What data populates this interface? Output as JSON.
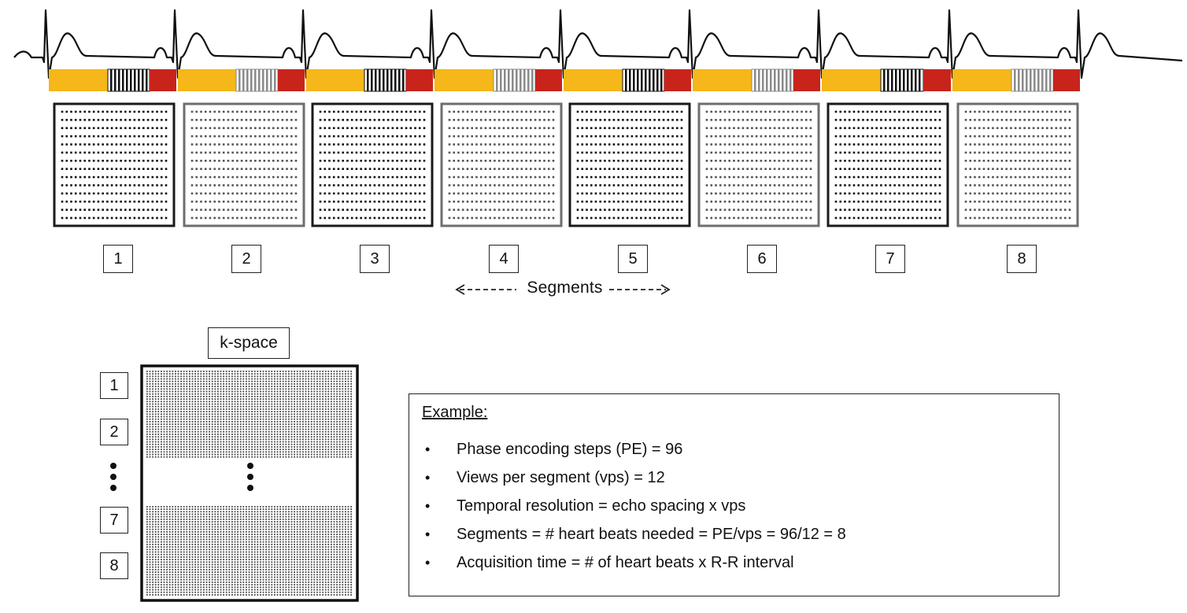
{
  "colors": {
    "ecg_line": "#111111",
    "systole_bar": "#f5b719",
    "diastole_bar": "#c8241b",
    "acquired_black": "#111111",
    "acquired_gray": "#8a8a8a",
    "dark_box_border": "#1a1a1a",
    "light_box_border": "#6e6e6e"
  },
  "segments": {
    "labels": [
      "1",
      "2",
      "3",
      "4",
      "5",
      "6",
      "7",
      "8"
    ],
    "caption": "Segments",
    "arrow_style": "dashed-double-arrow"
  },
  "kspace": {
    "label": "k-space",
    "segment_labels": [
      "1",
      "2",
      "7",
      "8"
    ],
    "ellipsis_icon": "vertical-ellipsis-icon"
  },
  "example": {
    "heading": "Example:",
    "items": [
      "Phase encoding steps (PE) = 96",
      "Views per segment (vps) = 12",
      "Temporal resolution = echo spacing x vps",
      "Segments = # heart beats needed = PE/vps = 96/12 = 8",
      "Acquisition time = # of heart beats x R-R interval"
    ]
  }
}
